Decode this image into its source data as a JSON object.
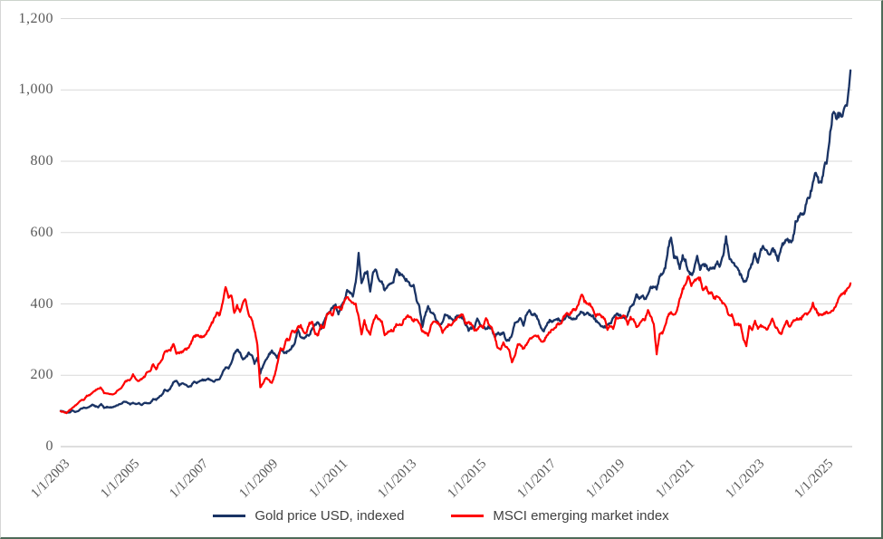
{
  "colors": {
    "gold_line": "#1a3364",
    "msci_line": "#fe0000",
    "gridline": "#d9d9d9",
    "axis_line": "#bdbdbd",
    "tick_text": "#595959",
    "legend_text": "#404040"
  },
  "legend": {
    "gold_label": "Gold price USD, indexed",
    "msci_label": "MSCI emerging market index"
  },
  "chart_data": {
    "type": "line",
    "title": "",
    "xlabel": "",
    "ylabel": "",
    "grid": true,
    "legend_position": "bottom",
    "y_range": [
      0,
      1200
    ],
    "x_range": [
      2003,
      2025.8
    ],
    "yticks": {
      "values": [
        0,
        200,
        400,
        600,
        800,
        1000,
        1200
      ],
      "labels": [
        "0",
        "200",
        "400",
        "600",
        "800",
        "1,000",
        "1,200"
      ]
    },
    "xticks": {
      "values": [
        2003,
        2005,
        2007,
        2009,
        2011,
        2013,
        2015,
        2017,
        2019,
        2021,
        2023,
        2025
      ],
      "labels": [
        "1/1/2003",
        "1/1/2005",
        "1/1/2007",
        "1/1/2009",
        "1/1/2011",
        "1/1/2013",
        "1/1/2015",
        "1/1/2017",
        "1/1/2019",
        "1/1/2021",
        "1/1/2023",
        "1/1/2025"
      ]
    },
    "x_start_year": 2003,
    "x_step_months": 1,
    "series": [
      {
        "name": "Gold price USD, indexed",
        "color": "#1a3364",
        "values": [
          100,
          98,
          95,
          95,
          101,
          97,
          100,
          106,
          109,
          108,
          112,
          117,
          113,
          111,
          119,
          109,
          111,
          110,
          110,
          114,
          117,
          120,
          127,
          123,
          119,
          122,
          120,
          122,
          117,
          123,
          121,
          122,
          133,
          132,
          139,
          145,
          160,
          156,
          164,
          181,
          184,
          172,
          178,
          175,
          168,
          170,
          182,
          179,
          183,
          187,
          186,
          190,
          185,
          183,
          187,
          189,
          209,
          222,
          220,
          234,
          260,
          273,
          262,
          245,
          249,
          262,
          258,
          234,
          249,
          205,
          229,
          244,
          258,
          268,
          258,
          248,
          274,
          263,
          264,
          269,
          280,
          292,
          330,
          306,
          303,
          312,
          313,
          332,
          342,
          350,
          329,
          350,
          368,
          379,
          389,
          397,
          373,
          397,
          405,
          440,
          432,
          422,
          458,
          541,
          458,
          484,
          491,
          431,
          489,
          498,
          468,
          464,
          438,
          450,
          456,
          464,
          500,
          484,
          486,
          468,
          467,
          447,
          450,
          413,
          392,
          335,
          369,
          393,
          373,
          372,
          353,
          339,
          352,
          373,
          363,
          362,
          352,
          370,
          362,
          362,
          342,
          327,
          333,
          333,
          361,
          341,
          334,
          332,
          335,
          329,
          308,
          319,
          314,
          321,
          299,
          298,
          314,
          347,
          348,
          362,
          341,
          372,
          380,
          368,
          371,
          358,
          331,
          324,
          341,
          353,
          351,
          356,
          357,
          349,
          356,
          369,
          360,
          358,
          359,
          367,
          378,
          371,
          373,
          370,
          365,
          353,
          344,
          338,
          335,
          342,
          344,
          361,
          372,
          369,
          363,
          361,
          367,
          396,
          398,
          428,
          414,
          426,
          412,
          427,
          447,
          446,
          444,
          475,
          487,
          501,
          556,
          590,
          531,
          529,
          500,
          534,
          520,
          488,
          481,
          497,
          536,
          498,
          510,
          510,
          494,
          502,
          499,
          515,
          506,
          537,
          586,
          534,
          517,
          508,
          497,
          481,
          467,
          462,
          498,
          513,
          542,
          514,
          554,
          560,
          552,
          540,
          553,
          546,
          520,
          558,
          573,
          580,
          574,
          575,
          627,
          643,
          655,
          655,
          689,
          704,
          741,
          772,
          744,
          738,
          787,
          804,
          879,
          940,
          925,
          929,
          926,
          950,
          965,
          1055
        ]
      },
      {
        "name": "MSCI emerging market index",
        "color": "#fe0000",
        "values": [
          99,
          97,
          94,
          102,
          109,
          115,
          122,
          130,
          131,
          142,
          144,
          151,
          157,
          163,
          165,
          151,
          148,
          148,
          145,
          151,
          160,
          164,
          179,
          186,
          186,
          202,
          189,
          184,
          190,
          196,
          210,
          212,
          232,
          216,
          234,
          242,
          268,
          268,
          271,
          290,
          262,
          262,
          266,
          273,
          275,
          288,
          309,
          312,
          310,
          306,
          312,
          326,
          342,
          357,
          376,
          368,
          406,
          451,
          419,
          426,
          372,
          396,
          376,
          405,
          412,
          369,
          358,
          328,
          287,
          165,
          178,
          194,
          186,
          177,
          202,
          235,
          275,
          270,
          301,
          300,
          326,
          320,
          334,
          339,
          320,
          320,
          346,
          347,
          316,
          313,
          339,
          332,
          368,
          379,
          368,
          394,
          390,
          386,
          406,
          418,
          407,
          401,
          399,
          363,
          313,
          352,
          327,
          314,
          350,
          370,
          356,
          351,
          311,
          321,
          326,
          325,
          342,
          340,
          344,
          361,
          365,
          361,
          354,
          357,
          348,
          322,
          319,
          312,
          338,
          354,
          349,
          343,
          320,
          330,
          341,
          342,
          352,
          360,
          365,
          373,
          344,
          348,
          344,
          327,
          329,
          339,
          334,
          359,
          344,
          333,
          310,
          275,
          271,
          290,
          279,
          272,
          236,
          253,
          287,
          284,
          274,
          286,
          300,
          306,
          309,
          311,
          295,
          295,
          311,
          320,
          328,
          335,
          344,
          346,
          365,
          373,
          370,
          383,
          384,
          397,
          429,
          409,
          401,
          399,
          384,
          366,
          372,
          365,
          359,
          327,
          340,
          331,
          360,
          360,
          362,
          369,
          344,
          361,
          355,
          337,
          343,
          357,
          356,
          382,
          364,
          344,
          260,
          317,
          318,
          341,
          369,
          377,
          370,
          378,
          413,
          442,
          455,
          480,
          451,
          462,
          471,
          470,
          438,
          448,
          429,
          433,
          415,
          422,
          414,
          401,
          391,
          368,
          369,
          343,
          342,
          342,
          300,
          282,
          338,
          327,
          353,
          330,
          339,
          335,
          328,
          339,
          359,
          336,
          326,
          313,
          338,
          351,
          334,
          350,
          357,
          358,
          359,
          372,
          371,
          377,
          401,
          384,
          369,
          368,
          374,
          376,
          377,
          381,
          396,
          419,
          426,
          431,
          443,
          458
        ]
      }
    ]
  }
}
